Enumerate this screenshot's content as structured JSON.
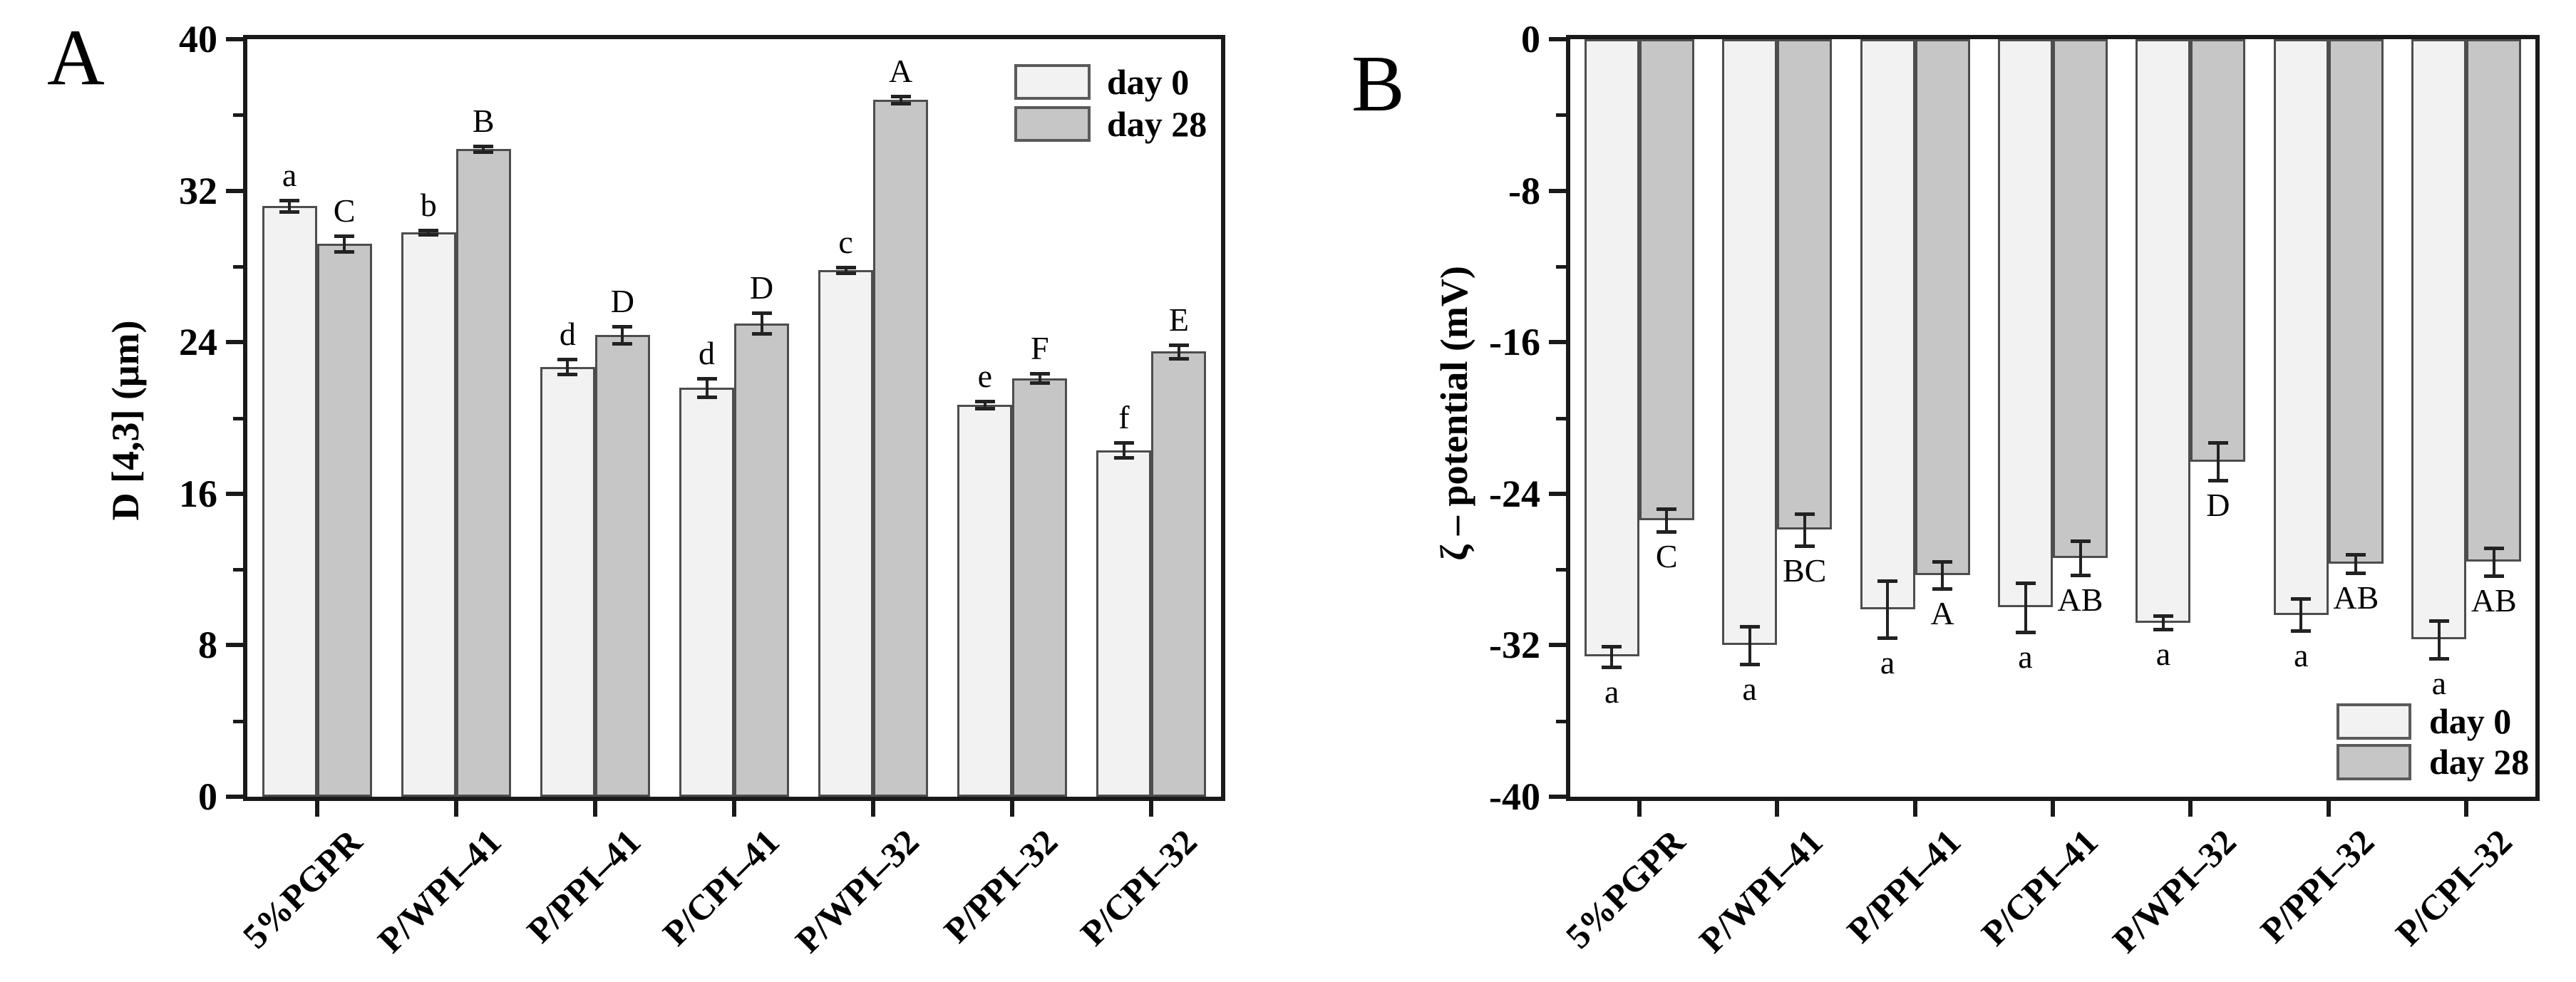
{
  "figure": {
    "background": "#ffffff",
    "colors": {
      "day0_fill": "#f2f2f2",
      "day28_fill": "#c6c6c6",
      "bar_border": "#4d4d4d",
      "frame": "#1a1a1a",
      "error_bar": "#222222",
      "text": "#000000"
    }
  },
  "chart_data": [
    {
      "type": "bar",
      "panel_label": "A",
      "ylabel": "D [4,3] (μm)",
      "xlabel": "",
      "ylim": [
        0,
        40
      ],
      "y_major_ticks": [
        0,
        8,
        16,
        24,
        32,
        40
      ],
      "y_tick_labels": [
        "0",
        "8",
        "16",
        "24",
        "32",
        "40"
      ],
      "y_minor_ticks": [
        4,
        12,
        20,
        28,
        36
      ],
      "grid": false,
      "legend_position": "top-right",
      "categories": [
        "5%PGPR",
        "P/WPI–41",
        "P/PPI–41",
        "P/CPI–41",
        "P/WPI–32",
        "P/PPI–32",
        "P/CPI–32"
      ],
      "series": [
        {
          "name": "day 0",
          "values": [
            31.2,
            29.8,
            22.7,
            21.6,
            27.8,
            20.7,
            18.3
          ],
          "errors": [
            0.3,
            0.1,
            0.4,
            0.5,
            0.15,
            0.2,
            0.4
          ],
          "letters": [
            "a",
            "b",
            "d",
            "d",
            "c",
            "e",
            "f"
          ]
        },
        {
          "name": "day 28",
          "values": [
            29.2,
            34.2,
            24.4,
            25.0,
            36.8,
            22.1,
            23.5
          ],
          "errors": [
            0.4,
            0.15,
            0.45,
            0.55,
            0.2,
            0.25,
            0.35
          ],
          "letters": [
            "C",
            "B",
            "D",
            "D",
            "A",
            "F",
            "E"
          ]
        }
      ]
    },
    {
      "type": "bar",
      "panel_label": "B",
      "ylabel": "ζ – potential (mV)",
      "xlabel": "",
      "ylim": [
        -40,
        0
      ],
      "y_major_ticks": [
        0,
        -8,
        -16,
        -24,
        -32,
        -40
      ],
      "y_tick_labels": [
        "0",
        "-8",
        "-16",
        "-24",
        "-32",
        "-40"
      ],
      "y_minor_ticks": [
        -4,
        -12,
        -20,
        -28,
        -36
      ],
      "grid": false,
      "legend_position": "bottom-right",
      "categories": [
        "5%PGPR",
        "P/WPI–41",
        "P/PPI–41",
        "P/CPI–41",
        "P/WPI–32",
        "P/PPI–32",
        "P/CPI–32"
      ],
      "series": [
        {
          "name": "day 0",
          "values": [
            -32.6,
            -32.0,
            -30.1,
            -30.0,
            -30.8,
            -30.4,
            -31.7
          ],
          "errors": [
            0.55,
            1.0,
            1.5,
            1.3,
            0.35,
            0.85,
            1.0
          ],
          "letters": [
            "a",
            "a",
            "a",
            "a",
            "a",
            "a",
            "a"
          ]
        },
        {
          "name": "day 28",
          "values": [
            -25.4,
            -25.9,
            -28.3,
            -27.4,
            -22.3,
            -27.7,
            -27.6
          ],
          "errors": [
            0.6,
            0.85,
            0.7,
            0.9,
            1.0,
            0.5,
            0.75
          ],
          "letters": [
            "C",
            "BC",
            "A",
            "AB",
            "D",
            "AB",
            "AB"
          ]
        }
      ]
    }
  ]
}
